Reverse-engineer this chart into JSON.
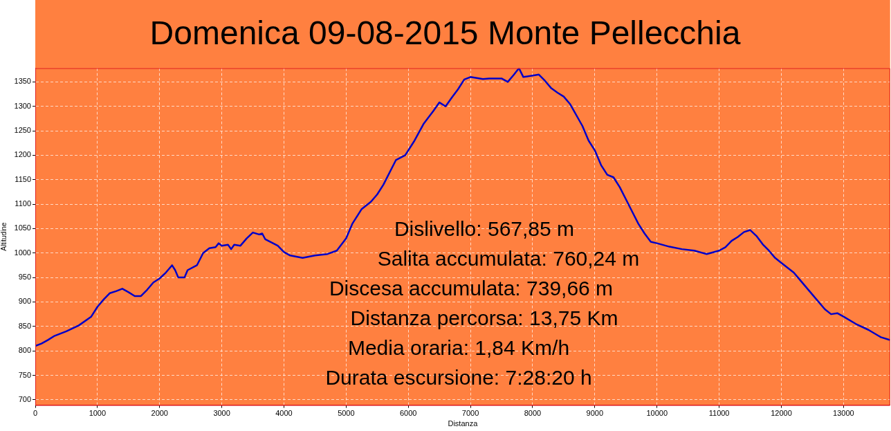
{
  "chart_data": {
    "type": "line",
    "title": "Domenica 09-08-2015 Monte Pellecchia",
    "xlabel": "Distanza",
    "ylabel": "Altitudine",
    "x": [
      0,
      100,
      200,
      300,
      400,
      500,
      700,
      900,
      1000,
      1100,
      1200,
      1300,
      1400,
      1500,
      1600,
      1700,
      1800,
      1900,
      2000,
      2100,
      2200,
      2250,
      2300,
      2400,
      2450,
      2600,
      2700,
      2800,
      2900,
      2950,
      3000,
      3100,
      3150,
      3200,
      3300,
      3400,
      3500,
      3600,
      3650,
      3700,
      3900,
      4000,
      4100,
      4300,
      4500,
      4700,
      4850,
      5000,
      5100,
      5250,
      5400,
      5500,
      5600,
      5800,
      5950,
      6100,
      6250,
      6400,
      6500,
      6600,
      6700,
      6800,
      6900,
      7000,
      7200,
      7300,
      7500,
      7600,
      7700,
      7780,
      7850,
      8000,
      8100,
      8200,
      8300,
      8400,
      8500,
      8600,
      8800,
      8900,
      9000,
      9100,
      9200,
      9300,
      9400,
      9500,
      9600,
      9700,
      9800,
      9900,
      10000,
      10200,
      10400,
      10600,
      10800,
      11000,
      11100,
      11200,
      11300,
      11400,
      11500,
      11600,
      11700,
      11800,
      11900,
      12000,
      12200,
      12300,
      12500,
      12700,
      12800,
      12900,
      13000,
      13200,
      13400,
      13600,
      13750
    ],
    "series": [
      {
        "color": "#0000c8",
        "values": [
          810,
          815,
          822,
          830,
          835,
          840,
          852,
          870,
          890,
          905,
          918,
          922,
          927,
          920,
          912,
          912,
          925,
          940,
          948,
          960,
          975,
          965,
          950,
          950,
          965,
          975,
          1000,
          1010,
          1012,
          1020,
          1015,
          1017,
          1008,
          1017,
          1015,
          1030,
          1042,
          1038,
          1040,
          1028,
          1015,
          1002,
          995,
          990,
          995,
          998,
          1005,
          1030,
          1060,
          1090,
          1105,
          1120,
          1140,
          1190,
          1200,
          1230,
          1265,
          1290,
          1308,
          1300,
          1318,
          1335,
          1355,
          1360,
          1356,
          1357,
          1357,
          1350,
          1365,
          1378,
          1360,
          1363,
          1365,
          1352,
          1337,
          1328,
          1320,
          1305,
          1260,
          1230,
          1210,
          1180,
          1160,
          1155,
          1135,
          1110,
          1085,
          1060,
          1040,
          1023,
          1020,
          1013,
          1008,
          1005,
          998,
          1005,
          1012,
          1025,
          1033,
          1043,
          1047,
          1035,
          1018,
          1005,
          990,
          980,
          960,
          945,
          915,
          885,
          875,
          877,
          870,
          855,
          843,
          828,
          822
        ]
      }
    ],
    "xlim": [
      0,
      13750
    ],
    "xticks": [
      0,
      1000,
      2000,
      3000,
      4000,
      5000,
      6000,
      7000,
      8000,
      9000,
      10000,
      11000,
      12000,
      13000
    ],
    "ylim": [
      689,
      1378
    ],
    "yticks": [
      700,
      750,
      800,
      850,
      900,
      950,
      1000,
      1050,
      1100,
      1150,
      1200,
      1250,
      1300,
      1350
    ],
    "grid": true,
    "legend": false,
    "marker": "none",
    "line_style": "solid",
    "annotations": [
      "Dislivello: 567,85 m",
      "Salita accumulata: 760,24 m",
      "Discesa accumulata: 739,66 m",
      "Distanza percorsa: 13,75 Km",
      "Media oraria: 1,84 Km/h",
      "Durata escursione: 7:28:20 h"
    ]
  }
}
